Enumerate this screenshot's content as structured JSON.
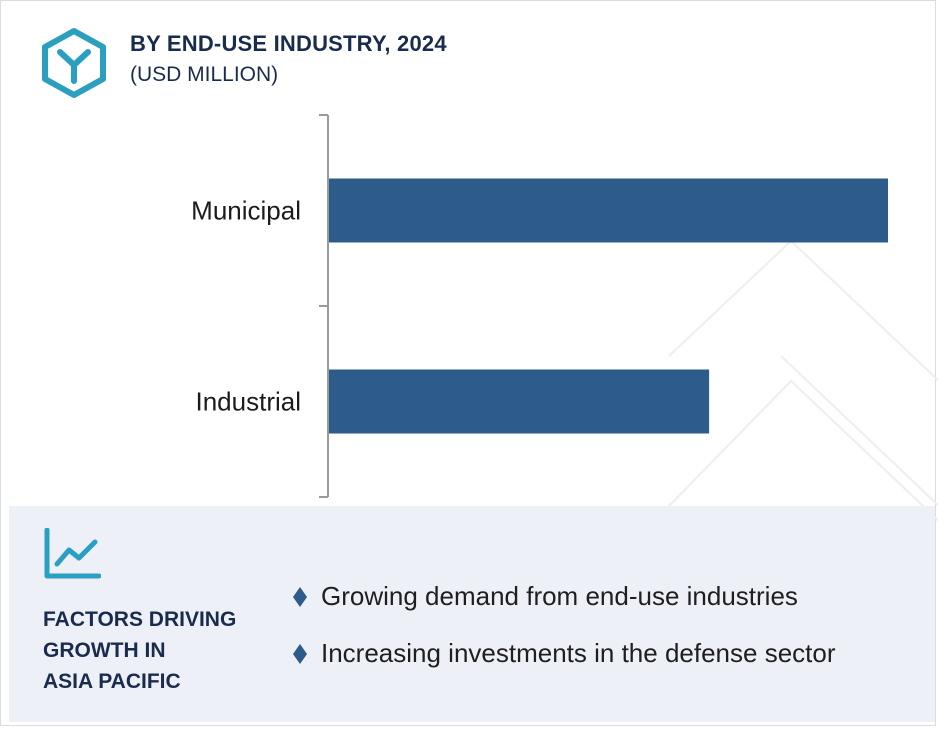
{
  "header": {
    "title": "BY END-USE INDUSTRY, 2024",
    "subtitle": "(USD MILLION)",
    "logo_icon": "y-hexagon-icon"
  },
  "chart_data": {
    "type": "bar",
    "orientation": "horizontal",
    "categories": [
      "Municipal",
      "Industrial"
    ],
    "values": [
      100,
      68
    ],
    "value_unit": "relative (no axis scale printed)",
    "xlim": [
      0,
      100
    ],
    "bar_color": "#2d5c8a",
    "grid": false,
    "legend": "none"
  },
  "factors": {
    "icon": "line-chart-icon",
    "title_lines": [
      "FACTORS DRIVING",
      "GROWTH IN",
      "ASIA PACIFIC"
    ],
    "items": [
      "Growing demand from end-use industries",
      "Increasing investments in the defense sector"
    ]
  },
  "colors": {
    "accent": "#2b9fc0",
    "navy": "#1a2c4e",
    "bar": "#2d5c8a",
    "panel_bg": "#eef0f7"
  }
}
